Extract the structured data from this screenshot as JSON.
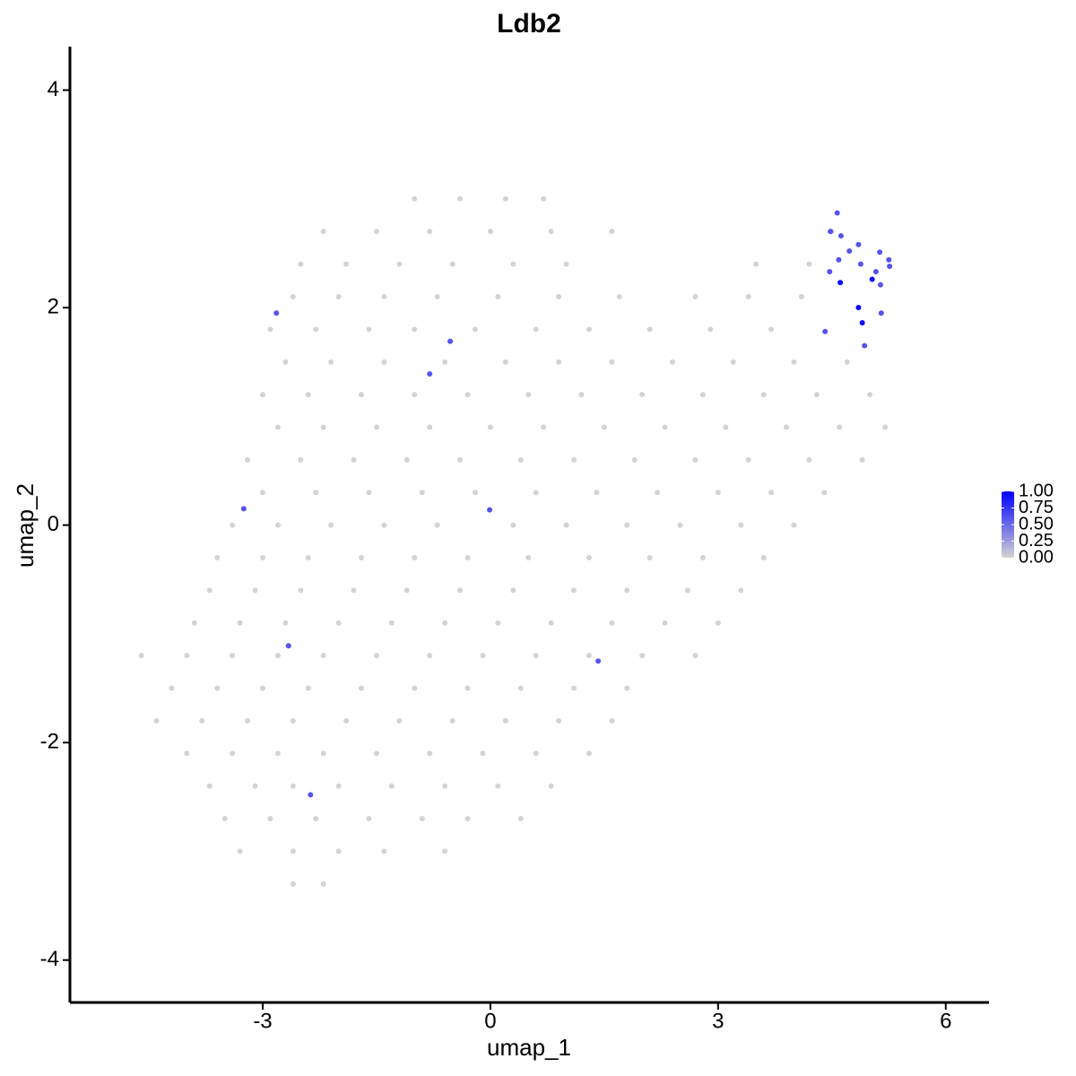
{
  "chart_data": {
    "type": "scatter",
    "title": "Ldb2",
    "xlabel": "umap_1",
    "ylabel": "umap_2",
    "xlim": [
      -5.54,
      6.57
    ],
    "ylim": [
      -4.39,
      4.4
    ],
    "xticks": [
      -3,
      0,
      3,
      6
    ],
    "yticks": [
      -4,
      -2,
      0,
      2,
      4
    ],
    "color_low": "#d3d3d3",
    "color_high": "#0000ff",
    "colorbar_lim": [
      0,
      1
    ],
    "colorbar_ticks": [
      {
        "value": 0,
        "label": "0.00"
      },
      {
        "value": 0.25,
        "label": "0.25"
      },
      {
        "value": 0.5,
        "label": "0.50"
      },
      {
        "value": 0.75,
        "label": "0.75"
      },
      {
        "value": 1,
        "label": "1.00"
      }
    ],
    "x": [
      -1.0,
      -0.4,
      0.2,
      0.7,
      -2.2,
      -1.5,
      -0.8,
      0.0,
      0.8,
      1.6,
      4.5,
      -2.5,
      -1.9,
      -1.2,
      -0.5,
      0.3,
      1.0,
      3.5,
      4.2,
      -2.6,
      -2.0,
      -1.4,
      -0.7,
      0.1,
      0.9,
      1.7,
      2.7,
      3.4,
      4.1,
      -2.9,
      -2.3,
      -1.6,
      -1.0,
      -0.2,
      0.6,
      1.3,
      2.1,
      2.9,
      3.7,
      -2.7,
      -2.1,
      -1.4,
      -0.6,
      0.2,
      0.9,
      1.6,
      2.4,
      3.2,
      4.0,
      4.7,
      -3.0,
      -2.4,
      -1.7,
      -1.0,
      -0.3,
      0.5,
      1.2,
      2.0,
      2.8,
      3.6,
      4.3,
      5.0,
      -2.8,
      -2.2,
      -1.5,
      -0.8,
      0.0,
      0.7,
      1.5,
      2.3,
      3.1,
      3.9,
      4.6,
      5.2,
      -3.2,
      -2.5,
      -1.8,
      -1.1,
      -0.4,
      0.4,
      1.1,
      1.9,
      2.7,
      3.4,
      4.2,
      4.9,
      -3.0,
      -2.3,
      -1.6,
      -0.9,
      -0.2,
      0.6,
      1.4,
      2.2,
      3.0,
      3.7,
      4.4,
      -3.4,
      -2.8,
      -2.1,
      -1.4,
      -0.7,
      0.3,
      1.0,
      1.8,
      2.5,
      3.3,
      4.0,
      -3.6,
      -3.0,
      -2.4,
      -1.7,
      -1.0,
      -0.3,
      0.5,
      1.3,
      2.1,
      2.8,
      3.6,
      -3.7,
      -3.1,
      -2.5,
      -1.8,
      -1.1,
      -0.4,
      0.3,
      1.1,
      1.8,
      2.6,
      3.3,
      -3.9,
      -3.3,
      -2.7,
      -2.0,
      -1.3,
      -0.6,
      0.1,
      0.8,
      1.6,
      2.3,
      3.0,
      -4.6,
      -4.0,
      -3.4,
      -2.8,
      -2.2,
      -1.5,
      -0.8,
      -0.1,
      0.6,
      1.3,
      2.0,
      2.7,
      -4.2,
      -3.6,
      -3.0,
      -2.4,
      -1.7,
      -1.0,
      -0.3,
      0.4,
      1.1,
      1.8,
      -4.4,
      -3.8,
      -3.2,
      -2.6,
      -1.9,
      -1.2,
      -0.5,
      0.2,
      0.9,
      1.6,
      -4.0,
      -3.4,
      -2.8,
      -2.2,
      -1.5,
      -0.8,
      -0.1,
      0.6,
      1.3,
      -3.7,
      -3.1,
      -2.6,
      -2.0,
      -1.3,
      -0.6,
      0.1,
      0.8,
      -3.5,
      -2.9,
      -2.3,
      -1.6,
      -0.9,
      -0.3,
      0.4,
      -3.3,
      -2.6,
      -2.0,
      -1.4,
      -0.6,
      -2.6,
      -2.2,
      -2.82,
      -0.53,
      -0.8,
      -3.25,
      -0.01,
      -2.66,
      1.42,
      -2.37,
      4.57,
      4.48,
      4.62,
      4.73,
      4.85,
      5.13,
      5.25,
      5.26,
      4.88,
      5.08,
      4.47,
      4.61,
      5.03,
      5.14,
      4.85,
      4.9,
      5.15,
      4.41,
      4.93,
      4.59
    ],
    "y": [
      3.0,
      3.0,
      3.0,
      3.0,
      2.7,
      2.7,
      2.7,
      2.7,
      2.7,
      2.7,
      2.7,
      2.4,
      2.4,
      2.4,
      2.4,
      2.4,
      2.4,
      2.4,
      2.4,
      2.1,
      2.1,
      2.1,
      2.1,
      2.1,
      2.1,
      2.1,
      2.1,
      2.1,
      2.1,
      1.8,
      1.8,
      1.8,
      1.8,
      1.8,
      1.8,
      1.8,
      1.8,
      1.8,
      1.8,
      1.5,
      1.5,
      1.5,
      1.5,
      1.5,
      1.5,
      1.5,
      1.5,
      1.5,
      1.5,
      1.5,
      1.2,
      1.2,
      1.2,
      1.2,
      1.2,
      1.2,
      1.2,
      1.2,
      1.2,
      1.2,
      1.2,
      1.2,
      0.9,
      0.9,
      0.9,
      0.9,
      0.9,
      0.9,
      0.9,
      0.9,
      0.9,
      0.9,
      0.9,
      0.9,
      0.6,
      0.6,
      0.6,
      0.6,
      0.6,
      0.6,
      0.6,
      0.6,
      0.6,
      0.6,
      0.6,
      0.6,
      0.3,
      0.3,
      0.3,
      0.3,
      0.3,
      0.3,
      0.3,
      0.3,
      0.3,
      0.3,
      0.3,
      0.0,
      0.0,
      0.0,
      0.0,
      0.0,
      0.0,
      0.0,
      0.0,
      0.0,
      0.0,
      0.0,
      -0.3,
      -0.3,
      -0.3,
      -0.3,
      -0.3,
      -0.3,
      -0.3,
      -0.3,
      -0.3,
      -0.3,
      -0.3,
      -0.6,
      -0.6,
      -0.6,
      -0.6,
      -0.6,
      -0.6,
      -0.6,
      -0.6,
      -0.6,
      -0.6,
      -0.6,
      -0.9,
      -0.9,
      -0.9,
      -0.9,
      -0.9,
      -0.9,
      -0.9,
      -0.9,
      -0.9,
      -0.9,
      -0.9,
      -1.2,
      -1.2,
      -1.2,
      -1.2,
      -1.2,
      -1.2,
      -1.2,
      -1.2,
      -1.2,
      -1.2,
      -1.2,
      -1.2,
      -1.5,
      -1.5,
      -1.5,
      -1.5,
      -1.5,
      -1.5,
      -1.5,
      -1.5,
      -1.5,
      -1.5,
      -1.8,
      -1.8,
      -1.8,
      -1.8,
      -1.8,
      -1.8,
      -1.8,
      -1.8,
      -1.8,
      -1.8,
      -2.1,
      -2.1,
      -2.1,
      -2.1,
      -2.1,
      -2.1,
      -2.1,
      -2.1,
      -2.1,
      -2.4,
      -2.4,
      -2.4,
      -2.4,
      -2.4,
      -2.4,
      -2.4,
      -2.4,
      -2.7,
      -2.7,
      -2.7,
      -2.7,
      -2.7,
      -2.7,
      -2.7,
      -3.0,
      -3.0,
      -3.0,
      -3.0,
      -3.0,
      -3.3,
      -3.3,
      1.95,
      1.69,
      1.39,
      0.15,
      0.14,
      -1.11,
      -1.25,
      -2.48,
      2.87,
      2.7,
      2.66,
      2.52,
      2.58,
      2.51,
      2.44,
      2.38,
      2.4,
      2.33,
      2.33,
      2.23,
      2.26,
      2.21,
      2.0,
      1.86,
      1.95,
      1.78,
      1.65,
      2.44
    ],
    "values": [
      0,
      0,
      0,
      0,
      0,
      0,
      0,
      0,
      0,
      0,
      0,
      0,
      0,
      0,
      0,
      0,
      0,
      0,
      0,
      0,
      0,
      0,
      0,
      0,
      0,
      0,
      0,
      0,
      0,
      0,
      0,
      0,
      0,
      0,
      0,
      0,
      0,
      0,
      0,
      0,
      0,
      0,
      0,
      0,
      0,
      0,
      0,
      0,
      0,
      0,
      0,
      0,
      0,
      0,
      0,
      0,
      0,
      0,
      0,
      0,
      0,
      0,
      0,
      0,
      0,
      0,
      0,
      0,
      0,
      0,
      0,
      0,
      0,
      0,
      0,
      0,
      0,
      0,
      0,
      0,
      0,
      0,
      0,
      0,
      0,
      0,
      0,
      0,
      0,
      0,
      0,
      0,
      0,
      0,
      0,
      0,
      0,
      0,
      0,
      0,
      0,
      0,
      0,
      0,
      0,
      0,
      0,
      0,
      0,
      0,
      0,
      0,
      0,
      0,
      0,
      0,
      0,
      0,
      0,
      0,
      0,
      0,
      0,
      0,
      0,
      0,
      0,
      0,
      0,
      0,
      0,
      0,
      0,
      0,
      0,
      0,
      0,
      0,
      0,
      0,
      0,
      0,
      0,
      0,
      0,
      0,
      0,
      0,
      0,
      0,
      0,
      0,
      0,
      0,
      0,
      0,
      0,
      0,
      0,
      0,
      0,
      0,
      0,
      0,
      0,
      0,
      0,
      0,
      0,
      0,
      0,
      0,
      0,
      0,
      0,
      0,
      0,
      0,
      0,
      0,
      0,
      0,
      0,
      0,
      0,
      0,
      0,
      0,
      0,
      0,
      0,
      0,
      0,
      0,
      0,
      0,
      0,
      0,
      0,
      0,
      0,
      0,
      0,
      0,
      0.6,
      0.6,
      0.6,
      0.6,
      0.6,
      0.6,
      0.6,
      0.6,
      0.6,
      0.6,
      0.6,
      0.6,
      0.6,
      0.6,
      0.6,
      0.6,
      0.6,
      0.6,
      0.6,
      0.95,
      0.95,
      0.6,
      0.95,
      0.95,
      0.6,
      0.6,
      0.6,
      0.6
    ]
  }
}
